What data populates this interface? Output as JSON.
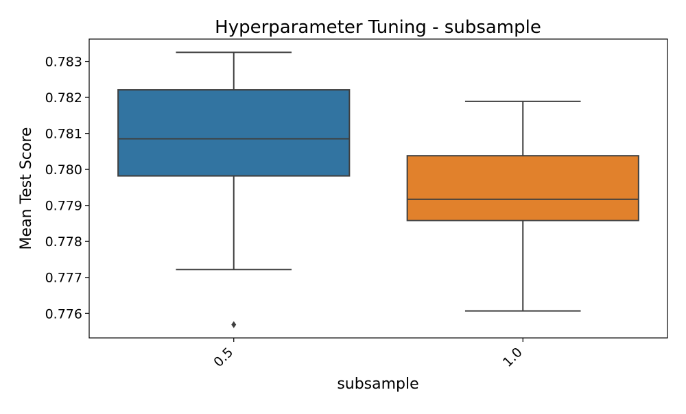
{
  "chart_data": {
    "type": "box",
    "title": "Hyperparameter Tuning - subsample",
    "xlabel": "subsample",
    "ylabel": "Mean Test Score",
    "categories": [
      "0.5",
      "1.0"
    ],
    "y_ticks": [
      "0.776",
      "0.777",
      "0.778",
      "0.779",
      "0.780",
      "0.781",
      "0.782",
      "0.783"
    ],
    "ylim": [
      0.77532,
      0.78362
    ],
    "x_tick_rotation_deg": 45,
    "grid": false,
    "legend": "none",
    "boxes": [
      {
        "category": "0.5",
        "whisker_low": 0.77722,
        "q1": 0.77982,
        "median": 0.78085,
        "q3": 0.78221,
        "whisker_high": 0.78325,
        "outliers": [
          0.77569
        ],
        "color": "#3274a1"
      },
      {
        "category": "1.0",
        "whisker_low": 0.77607,
        "q1": 0.77858,
        "median": 0.77917,
        "q3": 0.78038,
        "whisker_high": 0.78189,
        "outliers": [],
        "color": "#e1812c"
      }
    ],
    "line_color": "#3f3f3f"
  }
}
